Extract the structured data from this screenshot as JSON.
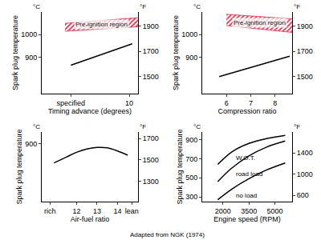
{
  "chart_data": [
    {
      "type": "line",
      "xlabel": "Timing advance (degrees)",
      "ylabel": "Spark plug temperature",
      "y_unit": "°C",
      "y2_unit": "°F",
      "grid": false,
      "xlim": [
        -5,
        11.5
      ],
      "xticks": [
        {
          "value": 0,
          "label": "specified"
        },
        10
      ],
      "ylim": [
        740,
        1100
      ],
      "yticks": [
        900,
        1000
      ],
      "y2lim": [
        1364,
        2012
      ],
      "y2ticks": [
        1500,
        1700,
        1900
      ],
      "x": [
        0,
        10.5
      ],
      "series": [
        {
          "color": "#000000",
          "values": [
            865,
            960
          ]
        }
      ],
      "regions": [
        {
          "label": "Pre-ignition region",
          "color": "#d8304f",
          "x": [
            -1,
            11.5
          ],
          "lower": [
            1015,
            1035
          ],
          "upper": [
            1050,
            1075
          ]
        }
      ]
    },
    {
      "type": "line",
      "xlabel": "Compression ratio",
      "ylabel": "Spark plug temperature",
      "y_unit": "°C",
      "y2_unit": "°F",
      "grid": false,
      "xlim": [
        5,
        8.7
      ],
      "xticks": [
        6,
        7,
        8
      ],
      "ylim": [
        740,
        1100
      ],
      "yticks": [
        900,
        1000
      ],
      "y2lim": [
        1364,
        2012
      ],
      "y2ticks": [
        1500,
        1700,
        1900
      ],
      "x": [
        5.7,
        8.6
      ],
      "series": [
        {
          "color": "#000000",
          "values": [
            815,
            905
          ]
        }
      ],
      "regions": [
        {
          "label": "Pre-ignition region",
          "color": "#d8304f",
          "x": [
            6,
            8.7
          ],
          "lower": [
            1040,
            1010
          ],
          "upper": [
            1090,
            1070
          ]
        }
      ]
    },
    {
      "type": "line",
      "xlabel": "Air-fuel ratio",
      "ylabel": "Spark plug temperature",
      "y_unit": "°C",
      "y2_unit": "°F",
      "grid": false,
      "xlim": [
        10.3,
        15
      ],
      "xticks": [
        {
          "value": 10.7,
          "label": "rich"
        },
        12,
        13,
        14,
        {
          "value": 14.7,
          "label": "lean"
        }
      ],
      "ylim": [
        600,
        960
      ],
      "yticks": [
        900
      ],
      "y2lim": [
        1112,
        1760
      ],
      "y2ticks": [
        1300,
        1500,
        1700
      ],
      "x": [
        10.9,
        11.5,
        12,
        12.5,
        13,
        13.5,
        14,
        14.5
      ],
      "series": [
        {
          "color": "#000000",
          "values": [
            800,
            830,
            855,
            872,
            880,
            878,
            862,
            840
          ]
        }
      ]
    },
    {
      "type": "line",
      "xlabel": "Engine speed (RPM)",
      "ylabel": "Spark plug temperature",
      "y_unit": "°C",
      "y2_unit": "°F",
      "grid": false,
      "xlim": [
        800,
        6000
      ],
      "xticks": [
        2000,
        3500,
        5000
      ],
      "ylim": [
        250,
        980
      ],
      "yticks": [
        300,
        500,
        700,
        900
      ],
      "y2lim": [
        482,
        1796
      ],
      "y2ticks": [
        600,
        1000,
        1400
      ],
      "x": [
        1700,
        2500,
        3500,
        4500,
        5600
      ],
      "series": [
        {
          "name": "W.O.T.",
          "color": "#000000",
          "values": [
            640,
            770,
            860,
            910,
            945
          ]
        },
        {
          "name": "road load",
          "color": "#000000",
          "values": [
            460,
            600,
            730,
            820,
            885
          ]
        },
        {
          "name": "no load",
          "color": "#000000",
          "values": [
            270,
            380,
            490,
            580,
            655
          ]
        }
      ]
    }
  ],
  "source": "Adapted from NGK (1974)"
}
